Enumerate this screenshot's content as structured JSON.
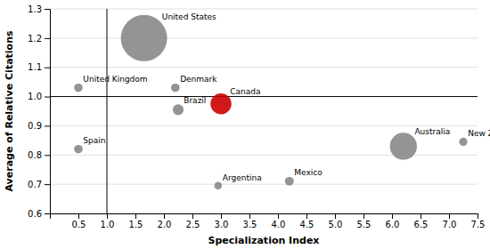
{
  "chart_data": {
    "type": "bubble",
    "xlabel": "Specialization Index",
    "ylabel": "Average of Relative Citations",
    "labels": [
      "United States",
      "United Kingdom",
      "Denmark",
      "Canada",
      "Brazil",
      "Spain",
      "Argentina",
      "Mexico",
      "Australia",
      "New Zealand"
    ],
    "x": [
      1.65,
      0.5,
      2.2,
      3.0,
      2.25,
      0.5,
      2.95,
      4.2,
      6.2,
      7.25
    ],
    "values": [
      1.2,
      1.03,
      1.03,
      0.975,
      0.955,
      0.82,
      0.695,
      0.71,
      0.83,
      0.845
    ],
    "sizes": [
      2200,
      75,
      75,
      450,
      120,
      75,
      60,
      80,
      750,
      70
    ],
    "colors": [
      "#888888",
      "#888888",
      "#888888",
      "#cc0000",
      "#888888",
      "#888888",
      "#888888",
      "#888888",
      "#888888",
      "#888888"
    ],
    "xlim": [
      0.0,
      7.5
    ],
    "ylim": [
      0.6,
      1.3
    ],
    "xticks": [
      0.5,
      {
        "value": 1.0,
        "label": "1.0"
      },
      1.5,
      {
        "value": 2.0,
        "label": "2.0"
      },
      2.5,
      {
        "value": 3.0,
        "label": "3.0"
      },
      3.5,
      {
        "value": 4.0,
        "label": "4.0"
      },
      4.5,
      {
        "value": 5.0,
        "label": "5.0"
      },
      5.5,
      {
        "value": 6.0,
        "label": "6.0"
      },
      6.5,
      {
        "value": 7.0,
        "label": "7.0"
      },
      7.5
    ],
    "yticks": [
      0.6,
      0.7,
      0.8,
      0.9,
      {
        "value": 1.0,
        "label": "1.0"
      },
      1.1,
      1.2,
      1.3
    ],
    "grid": "y",
    "vline_x": 1.0,
    "hline_y": 1.0
  }
}
